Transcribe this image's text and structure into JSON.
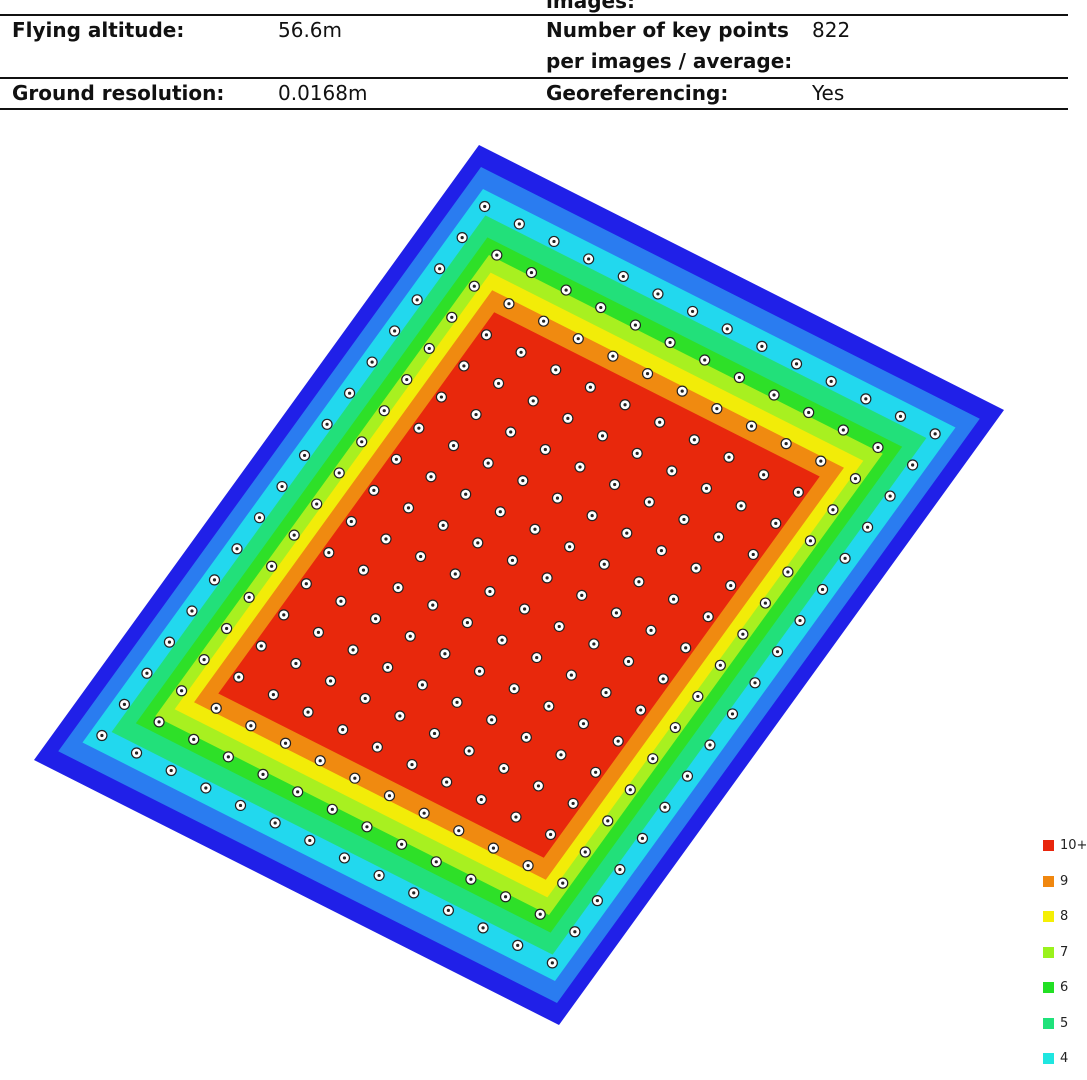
{
  "table": {
    "rows": [
      [
        "",
        "",
        "images:",
        ""
      ],
      [
        "Flying altitude:",
        "56.6m",
        "Number of key points per images / average:",
        "822"
      ],
      [
        "Ground resolution:",
        "0.0168m",
        "Georeferencing:",
        "Yes"
      ]
    ]
  },
  "legend": {
    "items": [
      {
        "label": "10+",
        "color": "#e8250c"
      },
      {
        "label": "9",
        "color": "#f0870f"
      },
      {
        "label": "8",
        "color": "#f5ef05"
      },
      {
        "label": "7",
        "color": "#9af21c"
      },
      {
        "label": "6",
        "color": "#22e024"
      },
      {
        "label": "5",
        "color": "#1fe27a"
      },
      {
        "label": "4",
        "color": "#1fe6e0"
      }
    ]
  }
}
